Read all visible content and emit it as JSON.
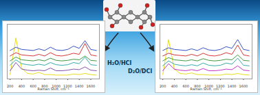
{
  "chart_data": [
    {
      "type": "line",
      "xlabel": "Raman Shift, cm⁻¹",
      "x": [
        200,
        300,
        400,
        500,
        600,
        700,
        800,
        900,
        1000,
        1100,
        1200,
        1300,
        1400,
        1500,
        1600,
        1700
      ],
      "xlim": [
        150,
        1750
      ],
      "xticks": [
        200,
        400,
        600,
        800,
        1000,
        1200,
        1400,
        1600
      ],
      "ylim": [
        0,
        100
      ],
      "tick_labels": "x",
      "series": [
        {
          "color": "#e6d800",
          "values": [
            8,
            75,
            20,
            10,
            9,
            12,
            8,
            8,
            7,
            7,
            7,
            9,
            8,
            10,
            8,
            7
          ]
        },
        {
          "color": "#7b3fa0",
          "values": [
            15,
            30,
            18,
            16,
            15,
            16,
            15,
            20,
            15,
            15,
            16,
            18,
            17,
            22,
            16,
            15
          ]
        },
        {
          "color": "#20a0a0",
          "values": [
            25,
            35,
            28,
            26,
            25,
            27,
            25,
            30,
            26,
            25,
            26,
            30,
            28,
            40,
            26,
            25
          ]
        },
        {
          "color": "#2e8b2e",
          "values": [
            33,
            40,
            35,
            34,
            33,
            35,
            33,
            38,
            34,
            33,
            34,
            36,
            35,
            42,
            34,
            33
          ]
        },
        {
          "color": "#d02020",
          "values": [
            42,
            48,
            44,
            43,
            42,
            45,
            42,
            48,
            43,
            42,
            44,
            47,
            45,
            65,
            44,
            42
          ]
        },
        {
          "color": "#2040c0",
          "values": [
            52,
            58,
            54,
            53,
            52,
            55,
            52,
            58,
            53,
            52,
            54,
            60,
            56,
            70,
            54,
            52
          ]
        }
      ]
    },
    {
      "type": "line",
      "xlabel": "Raman Shift, cm⁻¹",
      "x": [
        200,
        300,
        400,
        500,
        600,
        700,
        800,
        900,
        1000,
        1100,
        1200,
        1300,
        1400,
        1500,
        1600,
        1700
      ],
      "xlim": [
        150,
        1750
      ],
      "xticks": [
        200,
        400,
        600,
        800,
        1000,
        1200,
        1400,
        1600
      ],
      "ylim": [
        0,
        100
      ],
      "tick_labels": "x",
      "series": [
        {
          "color": "#e6d800",
          "values": [
            8,
            72,
            18,
            10,
            9,
            11,
            8,
            8,
            7,
            7,
            7,
            9,
            8,
            10,
            8,
            7
          ]
        },
        {
          "color": "#c020c0",
          "values": [
            15,
            28,
            18,
            16,
            15,
            17,
            15,
            19,
            15,
            15,
            16,
            18,
            17,
            24,
            16,
            15
          ]
        },
        {
          "color": "#20a0a0",
          "values": [
            24,
            33,
            27,
            25,
            24,
            26,
            24,
            29,
            25,
            24,
            25,
            29,
            27,
            38,
            25,
            24
          ]
        },
        {
          "color": "#2e8b2e",
          "values": [
            33,
            39,
            35,
            34,
            33,
            35,
            33,
            37,
            34,
            33,
            34,
            36,
            35,
            44,
            34,
            33
          ]
        },
        {
          "color": "#d02020",
          "values": [
            42,
            47,
            44,
            43,
            42,
            45,
            42,
            47,
            43,
            42,
            44,
            48,
            45,
            62,
            44,
            42
          ]
        },
        {
          "color": "#2040c0",
          "values": [
            52,
            57,
            54,
            53,
            52,
            55,
            52,
            57,
            53,
            52,
            54,
            59,
            56,
            72,
            54,
            52
          ]
        }
      ]
    }
  ],
  "arrows": [
    {
      "label": "H₂O/HCl"
    },
    {
      "label": "D₂O/DCl"
    }
  ]
}
